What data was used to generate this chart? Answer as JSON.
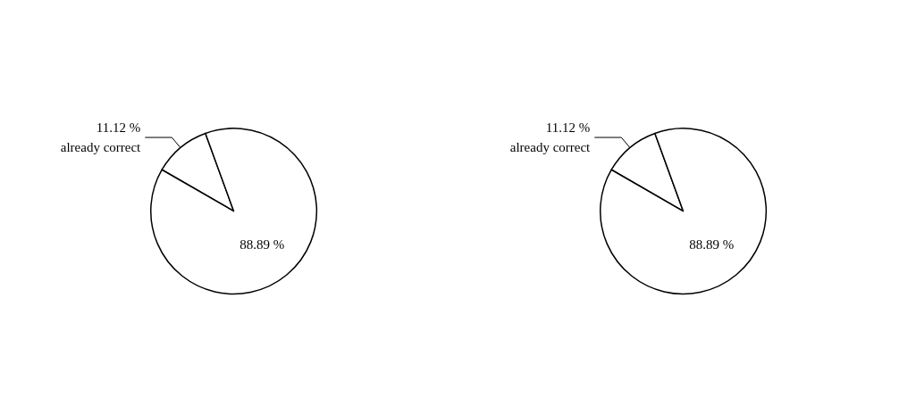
{
  "chart_data": [
    {
      "type": "pie",
      "categories": [
        "already correct",
        null
      ],
      "values": [
        11.12,
        88.89
      ],
      "value_labels": [
        "11.12 %",
        "88.89 %"
      ],
      "colors": [
        "#ffffff",
        "#ffffff"
      ]
    },
    {
      "type": "pie",
      "categories": [
        "already correct",
        null
      ],
      "values": [
        11.12,
        88.89
      ],
      "value_labels": [
        "11.12 %",
        "88.89 %"
      ],
      "colors": [
        "#ffffff",
        "#ffffff"
      ]
    }
  ]
}
